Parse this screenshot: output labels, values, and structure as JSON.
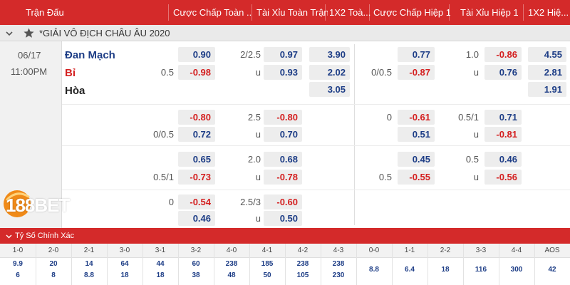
{
  "header": {
    "match_col": "Trận Đấu",
    "hdp_full": "Cược Chấp Toàn ...",
    "ou_full": "Tài Xỉu Toàn Trận",
    "x12_full": "1X2 Toà...",
    "hdp_half": "Cược Chấp Hiệp 1",
    "ou_half": "Tài Xỉu Hiệp 1",
    "x12_half": "1X2 Hiệ..."
  },
  "league": {
    "collapse_icon": "chevron-down-icon",
    "star_icon": "star-icon",
    "name": "*GIẢI VÔ ĐỊCH CHÂU ÂU 2020"
  },
  "match": {
    "date": "06/17",
    "time": "11:00PM",
    "home": "Đan Mạch",
    "away": "Bỉ",
    "draw": "Hòa"
  },
  "rows": [
    {
      "hdp_full": {
        "line_top": "",
        "line_bot": "0.5",
        "top": "0.90",
        "bot": "-0.98"
      },
      "ou_full": {
        "line_top": "2/2.5",
        "line_bot": "u",
        "top": "0.97",
        "bot": "0.93"
      },
      "x12_full": [
        "3.90",
        "2.02",
        "3.05"
      ],
      "hdp_half": {
        "line_top": "",
        "line_bot": "0/0.5",
        "top": "0.77",
        "bot": "-0.87"
      },
      "ou_half": {
        "line_top": "1.0",
        "line_bot": "u",
        "top": "-0.86",
        "bot": "0.76"
      },
      "x12_half": [
        "4.55",
        "2.81",
        "1.91"
      ]
    },
    {
      "hdp_full": {
        "line_top": "",
        "line_bot": "0/0.5",
        "top": "-0.80",
        "bot": "0.72"
      },
      "ou_full": {
        "line_top": "2.5",
        "line_bot": "u",
        "top": "-0.80",
        "bot": "0.70"
      },
      "hdp_half": {
        "line_top": "0",
        "line_bot": "",
        "top": "-0.61",
        "bot": "0.51"
      },
      "ou_half": {
        "line_top": "0.5/1",
        "line_bot": "u",
        "top": "0.71",
        "bot": "-0.81"
      }
    },
    {
      "hdp_full": {
        "line_top": "",
        "line_bot": "0.5/1",
        "top": "0.65",
        "bot": "-0.73"
      },
      "ou_full": {
        "line_top": "2.0",
        "line_bot": "u",
        "top": "0.68",
        "bot": "-0.78"
      },
      "hdp_half": {
        "line_top": "",
        "line_bot": "0.5",
        "top": "0.45",
        "bot": "-0.55"
      },
      "ou_half": {
        "line_top": "0.5",
        "line_bot": "u",
        "top": "0.46",
        "bot": "-0.56"
      }
    },
    {
      "hdp_full": {
        "line_top": "0",
        "line_bot": "",
        "top": "-0.54",
        "bot": "0.46"
      },
      "ou_full": {
        "line_top": "2.5/3",
        "line_bot": "u",
        "top": "-0.60",
        "bot": "0.50"
      }
    }
  ],
  "brand": {
    "num": "188",
    "word": "BET",
    "num_color": "#ffffff",
    "word_color": "#ffffff"
  },
  "exact": {
    "title": "Tỷ Số Chính Xác",
    "scores": [
      "1-0",
      "2-0",
      "2-1",
      "3-0",
      "3-1",
      "3-2",
      "4-0",
      "4-1",
      "4-2",
      "4-3",
      "0-0",
      "1-1",
      "2-2",
      "3-3",
      "4-4",
      "AOS"
    ],
    "top": [
      "9.9",
      "20",
      "14",
      "64",
      "44",
      "60",
      "238",
      "185",
      "238",
      "238",
      "8.8",
      "6.4",
      "18",
      "116",
      "300",
      "42"
    ],
    "bot": [
      "6",
      "8",
      "8.8",
      "18",
      "18",
      "38",
      "48",
      "50",
      "105",
      "230",
      "",
      "",
      "",
      "",
      "",
      ""
    ]
  },
  "colors": {
    "header": "#d42a2a",
    "positive": "#1d3d86",
    "negative": "#d42020"
  }
}
